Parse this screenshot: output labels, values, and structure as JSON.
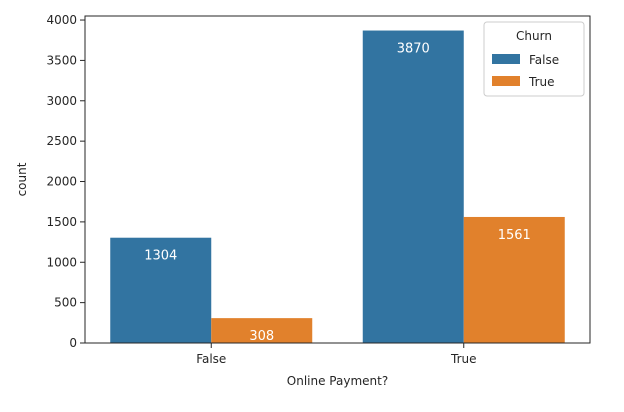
{
  "chart_data": {
    "type": "bar",
    "xlabel": "Online Payment?",
    "ylabel": "count",
    "categories": [
      "False",
      "True"
    ],
    "ylim": [
      0,
      4050
    ],
    "yticks": [
      0,
      500,
      1000,
      1500,
      2000,
      2500,
      3000,
      3500,
      4000
    ],
    "series": [
      {
        "name": "False",
        "values": [
          1304,
          3870
        ],
        "color": "#3274a1"
      },
      {
        "name": "True",
        "values": [
          308,
          1561
        ],
        "color": "#e1812c"
      }
    ],
    "data_labels": true,
    "grid": false,
    "legend": {
      "title": "Churn",
      "position": "top-right"
    }
  }
}
